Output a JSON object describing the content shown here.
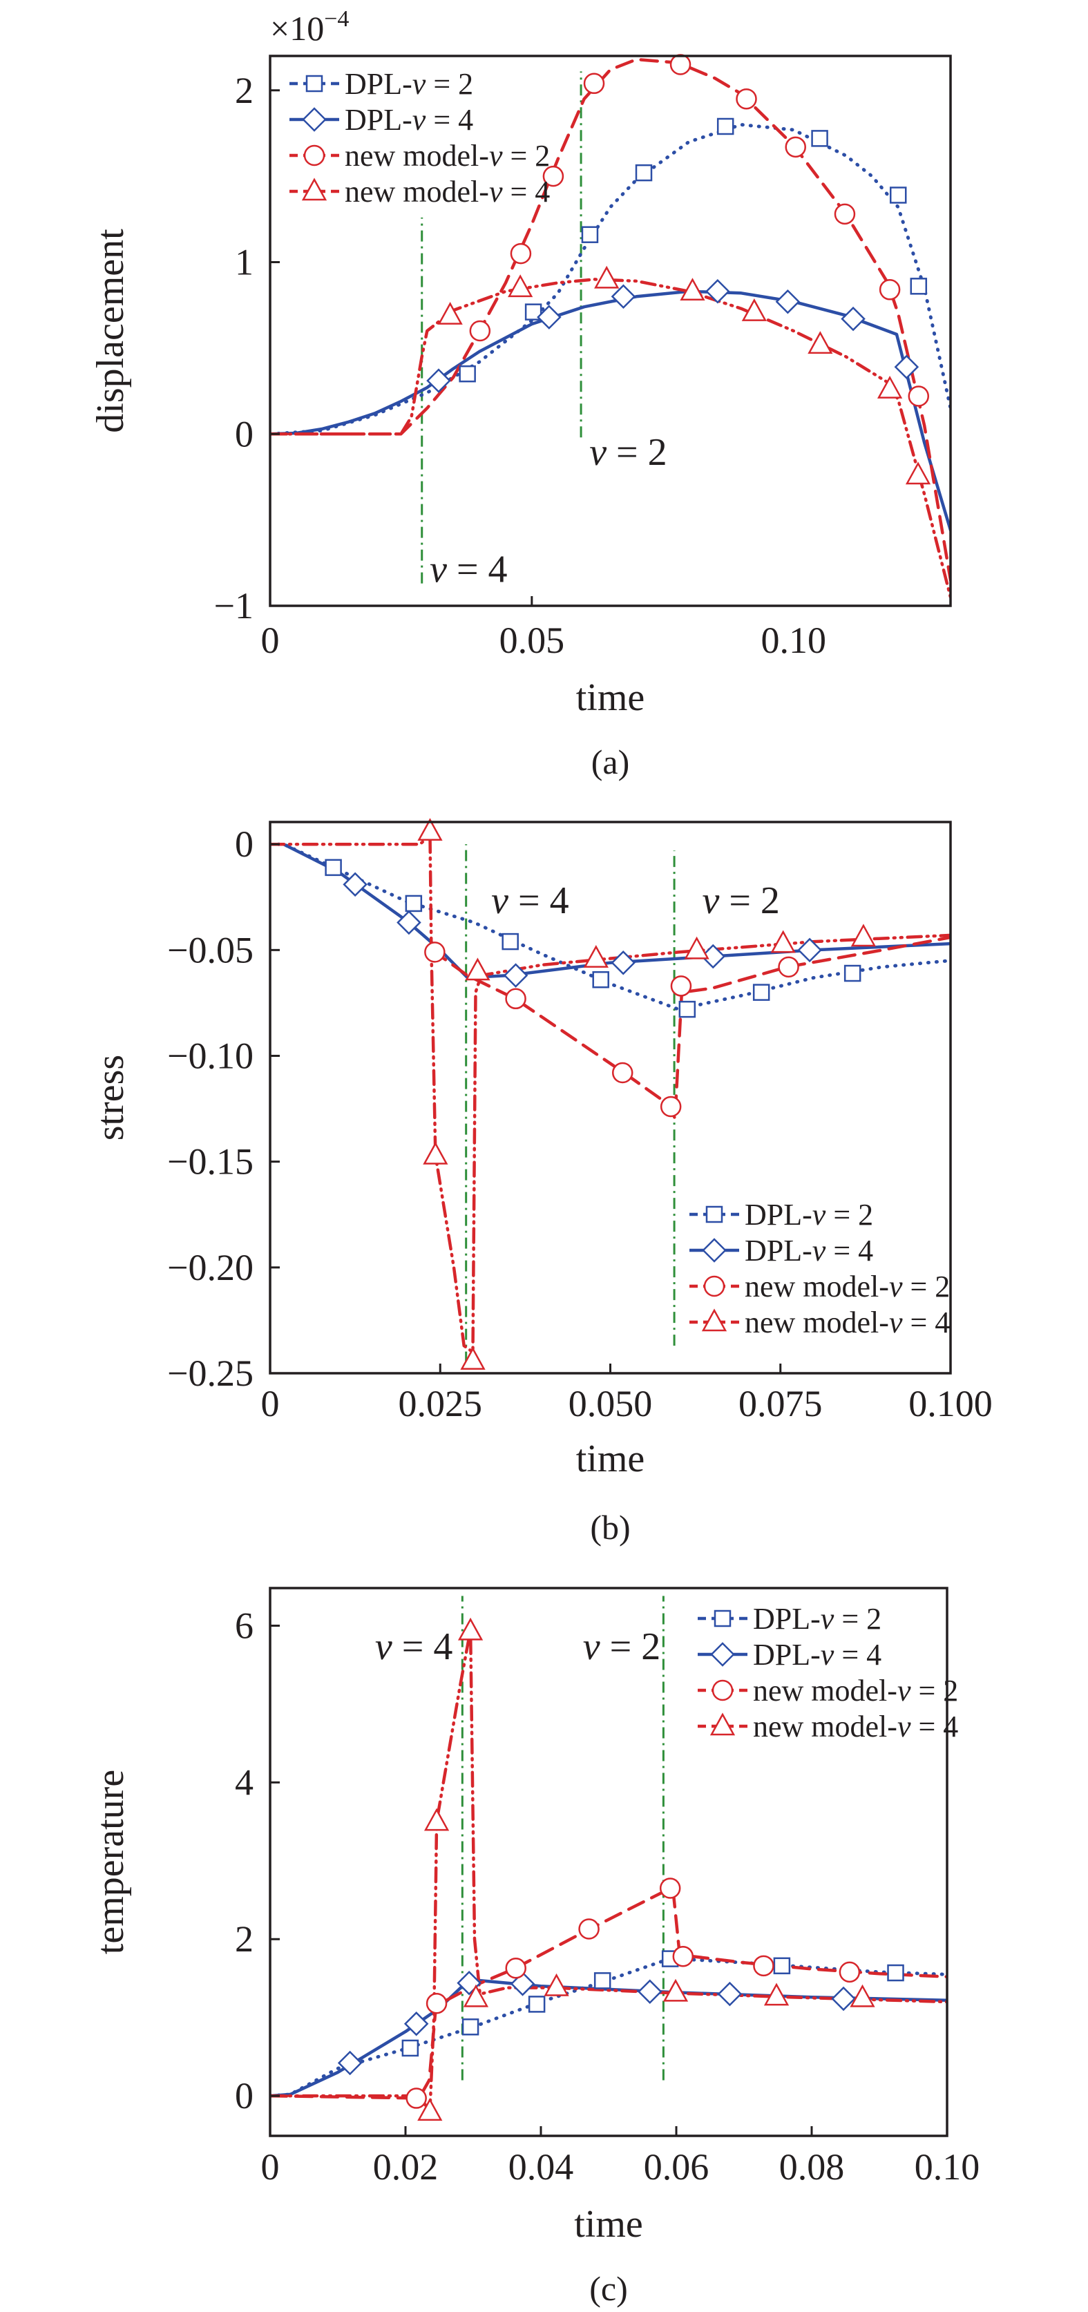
{
  "colors": {
    "dpl": "#2c4ea6",
    "new_model": "#d7262b",
    "wavefront": "#2f8f3a",
    "axis": "#231f20"
  },
  "chart_data": [
    {
      "id": "a",
      "type": "line",
      "caption": "(a)",
      "xlabel": "time",
      "ylabel": "displacement",
      "y_multiplier": "×10",
      "y_multiplier_exp": "−4",
      "xlim": [
        0,
        0.13
      ],
      "ylim": [
        -1,
        2.2
      ],
      "xticks": [
        0,
        0.05,
        0.1
      ],
      "xtick_labels": [
        "0",
        "0.05",
        "0.10"
      ],
      "yticks": [
        -1,
        0,
        1,
        2
      ],
      "ytick_labels": [
        "−1",
        "0",
        "1",
        "2"
      ],
      "grid": false,
      "legend_position": "top-left",
      "series": [
        {
          "name": "DPL-v = 2",
          "color": "#2c4ea6",
          "line": "dotted",
          "marker": "square",
          "x": [
            0,
            0.01,
            0.02,
            0.03,
            0.04,
            0.05,
            0.055,
            0.06,
            0.065,
            0.07,
            0.08,
            0.09,
            0.1,
            0.11,
            0.115,
            0.12,
            0.125,
            0.13
          ],
          "y": [
            0,
            0.02,
            0.11,
            0.24,
            0.42,
            0.66,
            0.82,
            1.08,
            1.32,
            1.48,
            1.7,
            1.8,
            1.77,
            1.62,
            1.5,
            1.32,
            0.85,
            0.15
          ],
          "markers_x": [
            0.0377,
            0.0503,
            0.0611,
            0.0714,
            0.087,
            0.105,
            0.12,
            0.1239
          ],
          "markers_y": [
            0.35,
            0.71,
            1.16,
            1.52,
            1.79,
            1.72,
            1.39,
            0.86
          ]
        },
        {
          "name": "DPL-v = 4",
          "color": "#2c4ea6",
          "line": "solid",
          "marker": "diamond",
          "x": [
            0,
            0.005,
            0.01,
            0.015,
            0.02,
            0.025,
            0.03,
            0.035,
            0.04,
            0.05,
            0.06,
            0.07,
            0.08,
            0.09,
            0.1,
            0.11,
            0.1197,
            0.125,
            0.13
          ],
          "y": [
            0,
            0.005,
            0.03,
            0.07,
            0.12,
            0.19,
            0.27,
            0.38,
            0.48,
            0.64,
            0.74,
            0.8,
            0.83,
            0.82,
            0.77,
            0.69,
            0.58,
            -0.05,
            -0.56
          ],
          "markers_x": [
            0.0322,
            0.0533,
            0.0675,
            0.0855,
            0.0989,
            0.1114,
            0.1216
          ],
          "markers_y": [
            0.31,
            0.68,
            0.8,
            0.83,
            0.77,
            0.67,
            0.39
          ]
        },
        {
          "name": "new model-v = 2",
          "color": "#d7262b",
          "line": "dashed",
          "marker": "circle",
          "x": [
            0,
            0.025,
            0.03,
            0.035,
            0.04,
            0.045,
            0.05,
            0.055,
            0.06,
            0.065,
            0.07,
            0.078,
            0.085,
            0.09,
            0.1,
            0.11,
            0.118,
            0.12,
            0.125,
            0.13
          ],
          "y": [
            0,
            0,
            0.15,
            0.33,
            0.6,
            0.88,
            1.22,
            1.6,
            1.95,
            2.12,
            2.18,
            2.16,
            2.07,
            1.98,
            1.68,
            1.28,
            0.88,
            0.7,
            0.05,
            -0.85
          ],
          "markers_x": [
            0.0401,
            0.0479,
            0.0541,
            0.0619,
            0.0784,
            0.091,
            0.1004,
            0.1098,
            0.1184,
            0.1239
          ],
          "markers_y": [
            0.6,
            1.05,
            1.5,
            2.04,
            2.15,
            1.95,
            1.67,
            1.28,
            0.84,
            0.22
          ]
        },
        {
          "name": "new model-v = 4",
          "color": "#d7262b",
          "line": "dashdotdot",
          "marker": "triangle",
          "x": [
            0,
            0.025,
            0.027,
            0.029,
            0.03,
            0.035,
            0.045,
            0.055,
            0.062,
            0.07,
            0.08,
            0.09,
            0.1,
            0.11,
            0.118,
            0.12,
            0.125,
            0.13
          ],
          "y": [
            0,
            0,
            0.1,
            0.45,
            0.6,
            0.72,
            0.83,
            0.88,
            0.9,
            0.89,
            0.83,
            0.73,
            0.6,
            0.45,
            0.3,
            0.2,
            -0.35,
            -0.95
          ],
          "markers_x": [
            0.0344,
            0.0478,
            0.0643,
            0.0807,
            0.0925,
            0.1051,
            0.1184,
            0.1238
          ],
          "markers_y": [
            0.69,
            0.85,
            0.9,
            0.83,
            0.71,
            0.52,
            0.26,
            -0.24
          ]
        }
      ],
      "wavefronts": [
        {
          "label": "v = 4",
          "x": 0.029,
          "y_from": -0.87,
          "y_to": 1.26,
          "label_x": 0.0305,
          "label_y": -0.78
        },
        {
          "label": "v = 2",
          "x": 0.0594,
          "y_from": -0.02,
          "y_to": 2.11,
          "label_x": 0.061,
          "label_y": -0.1
        }
      ]
    },
    {
      "id": "b",
      "type": "line",
      "caption": "(b)",
      "xlabel": "time",
      "ylabel": "stress",
      "xlim": [
        0,
        0.1
      ],
      "ylim": [
        -0.25,
        0.0105
      ],
      "xticks": [
        0,
        0.025,
        0.05,
        0.075,
        0.1
      ],
      "xtick_labels": [
        "0",
        "0.025",
        "0.050",
        "0.075",
        "0.100"
      ],
      "yticks": [
        0,
        -0.05,
        -0.1,
        -0.15,
        -0.2,
        -0.25
      ],
      "ytick_labels": [
        "0",
        "−0.05",
        "−0.10",
        "−0.15",
        "−0.20",
        "−0.25"
      ],
      "grid": false,
      "legend_position": "bottom-right",
      "series": [
        {
          "name": "DPL-v = 2",
          "color": "#2c4ea6",
          "line": "dotted",
          "marker": "square",
          "x": [
            0,
            0.002,
            0.01,
            0.02,
            0.03,
            0.04,
            0.05,
            0.06,
            0.07,
            0.08,
            0.09,
            0.1
          ],
          "y": [
            0,
            0,
            -0.012,
            -0.027,
            -0.037,
            -0.052,
            -0.066,
            -0.078,
            -0.071,
            -0.063,
            -0.058,
            -0.055
          ],
          "markers_x": [
            0.0093,
            0.0211,
            0.0353,
            0.0486,
            0.0613,
            0.0722,
            0.0856
          ],
          "markers_y": [
            -0.011,
            -0.028,
            -0.046,
            -0.064,
            -0.078,
            -0.07,
            -0.061
          ]
        },
        {
          "name": "DPL-v = 4",
          "color": "#2c4ea6",
          "line": "solid",
          "marker": "diamond",
          "x": [
            0,
            0.002,
            0.01,
            0.02,
            0.025,
            0.029,
            0.035,
            0.05,
            0.06,
            0.08,
            0.1
          ],
          "y": [
            0,
            0,
            -0.013,
            -0.036,
            -0.05,
            -0.063,
            -0.062,
            -0.056,
            -0.054,
            -0.05,
            -0.047
          ],
          "markers_x": [
            0.0125,
            0.0204,
            0.0361,
            0.0519,
            0.0651,
            0.0793
          ],
          "markers_y": [
            -0.019,
            -0.037,
            -0.062,
            -0.056,
            -0.053,
            -0.05
          ]
        },
        {
          "name": "new model-v = 2",
          "color": "#d7262b",
          "line": "dashed",
          "marker": "circle",
          "x": [
            0.0238,
            0.029,
            0.036,
            0.052,
            0.059,
            0.0595,
            0.0605,
            0.065,
            0.076,
            0.09,
            0.1
          ],
          "y": [
            -0.05,
            -0.062,
            -0.073,
            -0.108,
            -0.124,
            -0.13,
            -0.07,
            -0.068,
            -0.058,
            -0.05,
            -0.044
          ],
          "markers_x": [
            0.0242,
            0.0361,
            0.0518,
            0.0589,
            0.0604,
            0.0762
          ],
          "markers_y": [
            -0.051,
            -0.073,
            -0.108,
            -0.124,
            -0.067,
            -0.058
          ]
        },
        {
          "name": "new model-v = 4",
          "color": "#d7262b",
          "line": "dashdotdot",
          "marker": "triangle",
          "x": [
            0,
            0.022,
            0.0235,
            0.0237,
            0.0243,
            0.027,
            0.0285,
            0.0298,
            0.0302,
            0.031,
            0.04,
            0.06,
            0.08,
            0.1
          ],
          "y": [
            0,
            0,
            0.004,
            -0.05,
            -0.147,
            -0.2,
            -0.237,
            -0.24,
            -0.07,
            -0.062,
            -0.057,
            -0.051,
            -0.046,
            -0.043
          ],
          "markers_x": [
            0.0235,
            0.0243,
            0.0298,
            0.0305,
            0.0479,
            0.0627,
            0.0754,
            0.0872
          ],
          "markers_y": [
            0.006,
            -0.147,
            -0.244,
            -0.06,
            -0.054,
            -0.05,
            -0.047,
            -0.044
          ]
        }
      ],
      "wavefronts": [
        {
          "label": "v = 4",
          "x": 0.0288,
          "y_from": -0.245,
          "y_to": 0,
          "label_x": 0.0325,
          "label_y": -0.026
        },
        {
          "label": "v = 2",
          "x": 0.0594,
          "y_from": -0.237,
          "y_to": -0.003,
          "label_x": 0.0635,
          "label_y": -0.026
        }
      ]
    },
    {
      "id": "c",
      "type": "line",
      "caption": "(c)",
      "xlabel": "time",
      "ylabel": "temperature",
      "xlim": [
        0,
        0.1
      ],
      "ylim": [
        -0.51,
        6.48
      ],
      "xticks": [
        0,
        0.02,
        0.04,
        0.06,
        0.08,
        0.1
      ],
      "xtick_labels": [
        "0",
        "0.02",
        "0.04",
        "0.06",
        "0.08",
        "0.10"
      ],
      "yticks": [
        0,
        2,
        4,
        6
      ],
      "ytick_labels": [
        "0",
        "2",
        "4",
        "6"
      ],
      "grid": false,
      "legend_position": "top-right",
      "series": [
        {
          "name": "DPL-v = 2",
          "color": "#2c4ea6",
          "line": "dotted",
          "marker": "square",
          "x": [
            0,
            0.003,
            0.01,
            0.02,
            0.03,
            0.04,
            0.05,
            0.058,
            0.06,
            0.07,
            0.08,
            0.09,
            0.1
          ],
          "y": [
            0,
            0.02,
            0.35,
            0.6,
            0.88,
            1.2,
            1.48,
            1.72,
            1.75,
            1.7,
            1.64,
            1.58,
            1.55
          ],
          "markers_x": [
            0.0207,
            0.0296,
            0.0394,
            0.0491,
            0.0591,
            0.0756,
            0.0924
          ],
          "markers_y": [
            0.61,
            0.88,
            1.17,
            1.47,
            1.75,
            1.66,
            1.57
          ]
        },
        {
          "name": "DPL-v = 4",
          "color": "#2c4ea6",
          "line": "solid",
          "marker": "diamond",
          "x": [
            0,
            0.003,
            0.01,
            0.02,
            0.025,
            0.029,
            0.03,
            0.04,
            0.06,
            0.08,
            0.1
          ],
          "y": [
            0,
            0.02,
            0.3,
            0.82,
            1.12,
            1.45,
            1.48,
            1.4,
            1.32,
            1.26,
            1.22
          ],
          "markers_x": [
            0.0118,
            0.0216,
            0.0294,
            0.0373,
            0.0561,
            0.0679,
            0.0847
          ],
          "markers_y": [
            0.42,
            0.92,
            1.44,
            1.43,
            1.33,
            1.3,
            1.24
          ]
        },
        {
          "name": "new model-v = 2",
          "color": "#d7262b",
          "line": "dashed",
          "marker": "circle",
          "x": [
            0,
            0.022,
            0.0235,
            0.0245,
            0.03,
            0.036,
            0.047,
            0.058,
            0.0595,
            0.0605,
            0.07,
            0.08,
            0.09,
            0.1
          ],
          "y": [
            0,
            -0.03,
            0.2,
            1.15,
            1.4,
            1.62,
            2.12,
            2.6,
            2.65,
            1.8,
            1.7,
            1.62,
            1.56,
            1.52
          ],
          "markers_x": [
            0.0216,
            0.0246,
            0.0363,
            0.0471,
            0.0591,
            0.061,
            0.0729,
            0.0856
          ],
          "markers_y": [
            -0.03,
            1.18,
            1.63,
            2.13,
            2.65,
            1.78,
            1.66,
            1.58
          ]
        },
        {
          "name": "new model-v = 4",
          "color": "#d7262b",
          "line": "dashdotdot",
          "marker": "triangle",
          "x": [
            0,
            0.022,
            0.0236,
            0.0242,
            0.0246,
            0.028,
            0.0296,
            0.0302,
            0.031,
            0.035,
            0.042,
            0.06,
            0.08,
            0.1
          ],
          "y": [
            0,
            0,
            -0.2,
            1.0,
            3.5,
            5.2,
            5.95,
            2.0,
            1.3,
            1.38,
            1.38,
            1.31,
            1.25,
            1.2
          ],
          "markers_x": [
            0.0236,
            0.0246,
            0.0296,
            0.0304,
            0.0423,
            0.0599,
            0.0748,
            0.0875
          ],
          "markers_y": [
            -0.2,
            3.5,
            5.93,
            1.25,
            1.39,
            1.32,
            1.27,
            1.25
          ]
        }
      ],
      "wavefronts": [
        {
          "label": "v = 4",
          "x": 0.0284,
          "y_from": 0.2,
          "y_to": 6.38,
          "label_x": 0.0155,
          "label_y": 5.75
        },
        {
          "label": "v = 2",
          "x": 0.0581,
          "y_from": 0.2,
          "y_to": 6.38,
          "label_x": 0.0462,
          "label_y": 5.75
        }
      ]
    }
  ]
}
